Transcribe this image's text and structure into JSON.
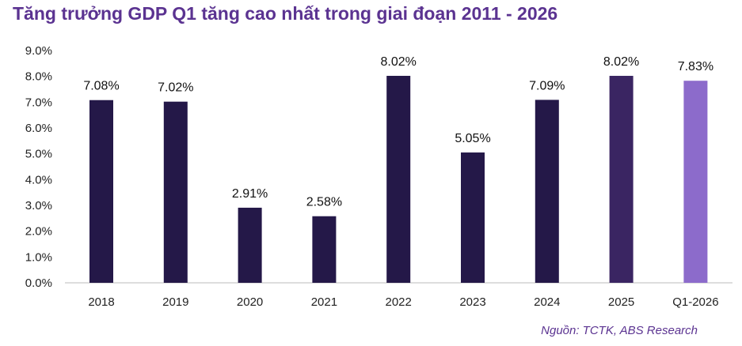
{
  "chart_data": {
    "type": "bar",
    "title": "Tăng trưởng GDP Q1 tăng cao nhất trong giai đoạn 2011 - 2026",
    "categories": [
      "2018",
      "2019",
      "2020",
      "2021",
      "2022",
      "2023",
      "2024",
      "2025",
      "Q1-2026"
    ],
    "values": [
      7.08,
      7.02,
      2.91,
      2.58,
      8.02,
      5.05,
      7.09,
      8.02,
      7.83
    ],
    "data_labels": [
      "7.08%",
      "7.02%",
      "2.91%",
      "2.58%",
      "8.02%",
      "5.05%",
      "7.09%",
      "8.02%",
      "7.83%"
    ],
    "colors": [
      "#241848",
      "#241848",
      "#241848",
      "#241848",
      "#241848",
      "#241848",
      "#241848",
      "#3a2562",
      "#8c6bcb"
    ],
    "yticks": [
      "0.0%",
      "1.0%",
      "2.0%",
      "3.0%",
      "4.0%",
      "5.0%",
      "6.0%",
      "7.0%",
      "8.0%",
      "9.0%"
    ],
    "ylim": [
      0,
      9
    ],
    "grid": false,
    "xlabel": "",
    "ylabel": ""
  },
  "source": "Nguồn: TCTK, ABS Research"
}
